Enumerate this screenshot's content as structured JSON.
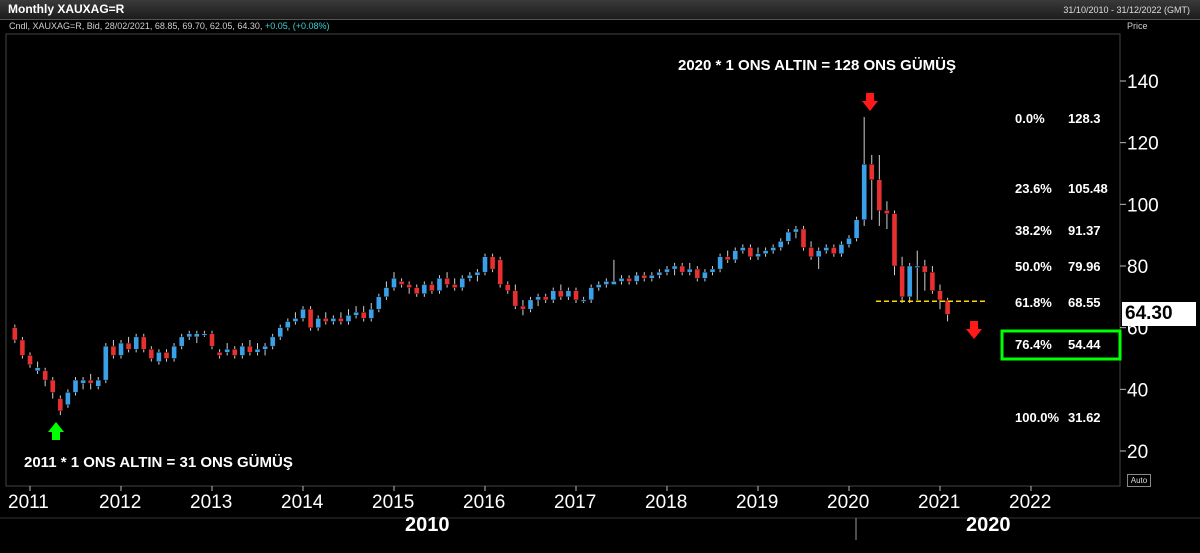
{
  "window": {
    "title": "Monthly XAUXAG=R",
    "date_range": "31/10/2010 - 31/12/2022 (GMT)",
    "info_line": "Cndl, XAUXAG=R, Bid, 28/02/2021, 68.85, 69.70, 62.05, 64.30,",
    "info_change": "+0.05, (+0.08%)",
    "price_header": "Price",
    "auto_label": "Auto",
    "last_price": "64.30"
  },
  "colors": {
    "up": "#3aa0e8",
    "down": "#e83030",
    "fib_line": "#ffd700",
    "highlight": "#00ff00",
    "arrow_down": "#ff1a1a",
    "arrow_up": "#00ff00"
  },
  "annotations": {
    "top_label": "2020 * 1 ONS ALTIN = 128 ONS GÜMÜŞ",
    "bottom_label": "2011 * 1 ONS ALTIN = 31 ONS GÜMÜŞ"
  },
  "chart_data": {
    "type": "candlestick",
    "title": "Monthly XAUXAG=R",
    "y_ticks": [
      20,
      40,
      60,
      80,
      100,
      120,
      140
    ],
    "ylim": [
      12,
      155
    ],
    "x_ticks": [
      "2011",
      "2012",
      "2013",
      "2014",
      "2015",
      "2016",
      "2017",
      "2018",
      "2019",
      "2020",
      "2021",
      "2022"
    ],
    "decade_labels": [
      "2010",
      "2020"
    ],
    "fibonacci": [
      {
        "level": "0.0%",
        "value": "128.3"
      },
      {
        "level": "23.6%",
        "value": "105.48"
      },
      {
        "level": "38.2%",
        "value": "91.37"
      },
      {
        "level": "50.0%",
        "value": "79.96"
      },
      {
        "level": "61.8%",
        "value": "68.55"
      },
      {
        "level": "76.4%",
        "value": "54.44"
      },
      {
        "level": "100.0%",
        "value": "31.62"
      }
    ],
    "highlighted_level": "76.4%",
    "support_line_value": 68.55,
    "candles": [
      {
        "date": "2010-11",
        "o": 60,
        "h": 61,
        "l": 55,
        "c": 56
      },
      {
        "date": "2010-12",
        "o": 56,
        "h": 57,
        "l": 50,
        "c": 51
      },
      {
        "date": "2011-01",
        "o": 51,
        "h": 52,
        "l": 47,
        "c": 48
      },
      {
        "date": "2011-02",
        "o": 46,
        "h": 49,
        "l": 45,
        "c": 47
      },
      {
        "date": "2011-03",
        "o": 46,
        "h": 47,
        "l": 41,
        "c": 43
      },
      {
        "date": "2011-04",
        "o": 43,
        "h": 44,
        "l": 37,
        "c": 39
      },
      {
        "date": "2011-05",
        "o": 37,
        "h": 38,
        "l": 31.62,
        "c": 33
      },
      {
        "date": "2011-06",
        "o": 35,
        "h": 40,
        "l": 34,
        "c": 39
      },
      {
        "date": "2011-07",
        "o": 39,
        "h": 44,
        "l": 38,
        "c": 43
      },
      {
        "date": "2011-08",
        "o": 42,
        "h": 44,
        "l": 40,
        "c": 43
      },
      {
        "date": "2011-09",
        "o": 43,
        "h": 45,
        "l": 40,
        "c": 42
      },
      {
        "date": "2011-10",
        "o": 41,
        "h": 44,
        "l": 40,
        "c": 43
      },
      {
        "date": "2011-11",
        "o": 43,
        "h": 55,
        "l": 42,
        "c": 54
      },
      {
        "date": "2011-12",
        "o": 54,
        "h": 56,
        "l": 50,
        "c": 51
      },
      {
        "date": "2012-01",
        "o": 51,
        "h": 56,
        "l": 50,
        "c": 55
      },
      {
        "date": "2012-02",
        "o": 55,
        "h": 57,
        "l": 52,
        "c": 53
      },
      {
        "date": "2012-03",
        "o": 53,
        "h": 58,
        "l": 52,
        "c": 57
      },
      {
        "date": "2012-04",
        "o": 57,
        "h": 58,
        "l": 52,
        "c": 53
      },
      {
        "date": "2012-05",
        "o": 53,
        "h": 54,
        "l": 49,
        "c": 50
      },
      {
        "date": "2012-06",
        "o": 49,
        "h": 53,
        "l": 48,
        "c": 52
      },
      {
        "date": "2012-07",
        "o": 52,
        "h": 53,
        "l": 49,
        "c": 50
      },
      {
        "date": "2012-08",
        "o": 50,
        "h": 55,
        "l": 49,
        "c": 54
      },
      {
        "date": "2012-09",
        "o": 54,
        "h": 58,
        "l": 53,
        "c": 57
      },
      {
        "date": "2012-10",
        "o": 57,
        "h": 59,
        "l": 56,
        "c": 58
      },
      {
        "date": "2012-11",
        "o": 57,
        "h": 59,
        "l": 55,
        "c": 58
      },
      {
        "date": "2012-12",
        "o": 58,
        "h": 59,
        "l": 57,
        "c": 58
      },
      {
        "date": "2013-01",
        "o": 58,
        "h": 59,
        "l": 53,
        "c": 54
      },
      {
        "date": "2013-02",
        "o": 52,
        "h": 53,
        "l": 50,
        "c": 51
      },
      {
        "date": "2013-03",
        "o": 52,
        "h": 55,
        "l": 51,
        "c": 53
      },
      {
        "date": "2013-04",
        "o": 53,
        "h": 54,
        "l": 50,
        "c": 51
      },
      {
        "date": "2013-05",
        "o": 51,
        "h": 55,
        "l": 50,
        "c": 54
      },
      {
        "date": "2013-06",
        "o": 54,
        "h": 56,
        "l": 51,
        "c": 52
      },
      {
        "date": "2013-07",
        "o": 52,
        "h": 55,
        "l": 51,
        "c": 53
      },
      {
        "date": "2013-08",
        "o": 53,
        "h": 55,
        "l": 51,
        "c": 54
      },
      {
        "date": "2013-09",
        "o": 54,
        "h": 58,
        "l": 53,
        "c": 57
      },
      {
        "date": "2013-10",
        "o": 57,
        "h": 61,
        "l": 56,
        "c": 60
      },
      {
        "date": "2013-11",
        "o": 60,
        "h": 63,
        "l": 59,
        "c": 62
      },
      {
        "date": "2013-12",
        "o": 62,
        "h": 65,
        "l": 61,
        "c": 63
      },
      {
        "date": "2014-01",
        "o": 63,
        "h": 67,
        "l": 62,
        "c": 66
      },
      {
        "date": "2014-02",
        "o": 66,
        "h": 67,
        "l": 59,
        "c": 60
      },
      {
        "date": "2014-03",
        "o": 60,
        "h": 64,
        "l": 59,
        "c": 63
      },
      {
        "date": "2014-04",
        "o": 63,
        "h": 65,
        "l": 61,
        "c": 62
      },
      {
        "date": "2014-05",
        "o": 62,
        "h": 64,
        "l": 61,
        "c": 63
      },
      {
        "date": "2014-06",
        "o": 63,
        "h": 65,
        "l": 61,
        "c": 62
      },
      {
        "date": "2014-07",
        "o": 62,
        "h": 66,
        "l": 61,
        "c": 64
      },
      {
        "date": "2014-08",
        "o": 64,
        "h": 67,
        "l": 63,
        "c": 65
      },
      {
        "date": "2014-09",
        "o": 65,
        "h": 67,
        "l": 62,
        "c": 63
      },
      {
        "date": "2014-10",
        "o": 63,
        "h": 68,
        "l": 62,
        "c": 66
      },
      {
        "date": "2014-11",
        "o": 66,
        "h": 71,
        "l": 65,
        "c": 70
      },
      {
        "date": "2014-12",
        "o": 70,
        "h": 75,
        "l": 69,
        "c": 73
      },
      {
        "date": "2015-01",
        "o": 73,
        "h": 78,
        "l": 72,
        "c": 76
      },
      {
        "date": "2015-02",
        "o": 75,
        "h": 76,
        "l": 73,
        "c": 74
      },
      {
        "date": "2015-03",
        "o": 74,
        "h": 75,
        "l": 71,
        "c": 73
      },
      {
        "date": "2015-04",
        "o": 73,
        "h": 74,
        "l": 70,
        "c": 71
      },
      {
        "date": "2015-05",
        "o": 71,
        "h": 75,
        "l": 70,
        "c": 74
      },
      {
        "date": "2015-06",
        "o": 74,
        "h": 75,
        "l": 71,
        "c": 72
      },
      {
        "date": "2015-07",
        "o": 72,
        "h": 77,
        "l": 71,
        "c": 76
      },
      {
        "date": "2015-08",
        "o": 76,
        "h": 78,
        "l": 73,
        "c": 74
      },
      {
        "date": "2015-09",
        "o": 74,
        "h": 76,
        "l": 72,
        "c": 73
      },
      {
        "date": "2015-10",
        "o": 73,
        "h": 77,
        "l": 72,
        "c": 76
      },
      {
        "date": "2015-11",
        "o": 76,
        "h": 78,
        "l": 75,
        "c": 77
      },
      {
        "date": "2015-12",
        "o": 77,
        "h": 79,
        "l": 75,
        "c": 78
      },
      {
        "date": "2016-01",
        "o": 78,
        "h": 84,
        "l": 77,
        "c": 83
      },
      {
        "date": "2016-02",
        "o": 83,
        "h": 84,
        "l": 78,
        "c": 79
      },
      {
        "date": "2016-03",
        "o": 82,
        "h": 83,
        "l": 73,
        "c": 74
      },
      {
        "date": "2016-04",
        "o": 74,
        "h": 75,
        "l": 71,
        "c": 72
      },
      {
        "date": "2016-05",
        "o": 72,
        "h": 74,
        "l": 66,
        "c": 67
      },
      {
        "date": "2016-06",
        "o": 67,
        "h": 69,
        "l": 64,
        "c": 66
      },
      {
        "date": "2016-07",
        "o": 66,
        "h": 70,
        "l": 65,
        "c": 69
      },
      {
        "date": "2016-08",
        "o": 69,
        "h": 71,
        "l": 67,
        "c": 70
      },
      {
        "date": "2016-09",
        "o": 70,
        "h": 71,
        "l": 68,
        "c": 69
      },
      {
        "date": "2016-10",
        "o": 69,
        "h": 73,
        "l": 68,
        "c": 72
      },
      {
        "date": "2016-11",
        "o": 72,
        "h": 74,
        "l": 69,
        "c": 70
      },
      {
        "date": "2016-12",
        "o": 70,
        "h": 73,
        "l": 69,
        "c": 72
      },
      {
        "date": "2017-01",
        "o": 72,
        "h": 73,
        "l": 68,
        "c": 69
      },
      {
        "date": "2017-02",
        "o": 69,
        "h": 70,
        "l": 68,
        "c": 69
      },
      {
        "date": "2017-03",
        "o": 69,
        "h": 74,
        "l": 68,
        "c": 73
      },
      {
        "date": "2017-04",
        "o": 73,
        "h": 75,
        "l": 72,
        "c": 74
      },
      {
        "date": "2017-05",
        "o": 74,
        "h": 76,
        "l": 73,
        "c": 75
      },
      {
        "date": "2017-06",
        "o": 74,
        "h": 82,
        "l": 74,
        "c": 75
      },
      {
        "date": "2017-07",
        "o": 75,
        "h": 77,
        "l": 74,
        "c": 76
      },
      {
        "date": "2017-08",
        "o": 76,
        "h": 77,
        "l": 74,
        "c": 75
      },
      {
        "date": "2017-09",
        "o": 75,
        "h": 78,
        "l": 74,
        "c": 77
      },
      {
        "date": "2017-10",
        "o": 77,
        "h": 78,
        "l": 75,
        "c": 76
      },
      {
        "date": "2017-11",
        "o": 76,
        "h": 78,
        "l": 75,
        "c": 77
      },
      {
        "date": "2017-12",
        "o": 77,
        "h": 79,
        "l": 76,
        "c": 78
      },
      {
        "date": "2018-01",
        "o": 78,
        "h": 80,
        "l": 77,
        "c": 79
      },
      {
        "date": "2018-02",
        "o": 79,
        "h": 81,
        "l": 77,
        "c": 80
      },
      {
        "date": "2018-03",
        "o": 80,
        "h": 81,
        "l": 77,
        "c": 78
      },
      {
        "date": "2018-04",
        "o": 78,
        "h": 81,
        "l": 77,
        "c": 79
      },
      {
        "date": "2018-05",
        "o": 79,
        "h": 80,
        "l": 75,
        "c": 76
      },
      {
        "date": "2018-06",
        "o": 76,
        "h": 79,
        "l": 75,
        "c": 78
      },
      {
        "date": "2018-07",
        "o": 78,
        "h": 80,
        "l": 77,
        "c": 79
      },
      {
        "date": "2018-08",
        "o": 79,
        "h": 84,
        "l": 78,
        "c": 83
      },
      {
        "date": "2018-09",
        "o": 83,
        "h": 85,
        "l": 81,
        "c": 82
      },
      {
        "date": "2018-10",
        "o": 82,
        "h": 86,
        "l": 81,
        "c": 85
      },
      {
        "date": "2018-11",
        "o": 85,
        "h": 87,
        "l": 84,
        "c": 86
      },
      {
        "date": "2018-12",
        "o": 86,
        "h": 87,
        "l": 82,
        "c": 83
      },
      {
        "date": "2019-01",
        "o": 83,
        "h": 86,
        "l": 82,
        "c": 84
      },
      {
        "date": "2019-02",
        "o": 84,
        "h": 86,
        "l": 83,
        "c": 85
      },
      {
        "date": "2019-03",
        "o": 85,
        "h": 87,
        "l": 84,
        "c": 86
      },
      {
        "date": "2019-04",
        "o": 86,
        "h": 89,
        "l": 85,
        "c": 88
      },
      {
        "date": "2019-05",
        "o": 88,
        "h": 92,
        "l": 87,
        "c": 91
      },
      {
        "date": "2019-06",
        "o": 91,
        "h": 93,
        "l": 89,
        "c": 92
      },
      {
        "date": "2019-07",
        "o": 92,
        "h": 93,
        "l": 85,
        "c": 86
      },
      {
        "date": "2019-08",
        "o": 86,
        "h": 88,
        "l": 82,
        "c": 83
      },
      {
        "date": "2019-09",
        "o": 83,
        "h": 86,
        "l": 79,
        "c": 85
      },
      {
        "date": "2019-10",
        "o": 85,
        "h": 87,
        "l": 84,
        "c": 86
      },
      {
        "date": "2019-11",
        "o": 86,
        "h": 87,
        "l": 83,
        "c": 84
      },
      {
        "date": "2019-12",
        "o": 84,
        "h": 88,
        "l": 83,
        "c": 87
      },
      {
        "date": "2020-01",
        "o": 87,
        "h": 90,
        "l": 86,
        "c": 89
      },
      {
        "date": "2020-02",
        "o": 89,
        "h": 96,
        "l": 88,
        "c": 95
      },
      {
        "date": "2020-03",
        "o": 95,
        "h": 128.3,
        "l": 93,
        "c": 113
      },
      {
        "date": "2020-04",
        "o": 113,
        "h": 116,
        "l": 95,
        "c": 108
      },
      {
        "date": "2020-05",
        "o": 108,
        "h": 116,
        "l": 93,
        "c": 98
      },
      {
        "date": "2020-06",
        "o": 98,
        "h": 101,
        "l": 92,
        "c": 97
      },
      {
        "date": "2020-07",
        "o": 97,
        "h": 98,
        "l": 77,
        "c": 80
      },
      {
        "date": "2020-08",
        "o": 80,
        "h": 83,
        "l": 68,
        "c": 70
      },
      {
        "date": "2020-09",
        "o": 70,
        "h": 81,
        "l": 68,
        "c": 80
      },
      {
        "date": "2020-10",
        "o": 80,
        "h": 85,
        "l": 69,
        "c": 80
      },
      {
        "date": "2020-11",
        "o": 80,
        "h": 82,
        "l": 72,
        "c": 78
      },
      {
        "date": "2020-12",
        "o": 78,
        "h": 80,
        "l": 71,
        "c": 72
      },
      {
        "date": "2021-01",
        "o": 72,
        "h": 74,
        "l": 66,
        "c": 69
      },
      {
        "date": "2021-02",
        "o": 68.85,
        "h": 69.7,
        "l": 62.05,
        "c": 64.3
      }
    ]
  }
}
